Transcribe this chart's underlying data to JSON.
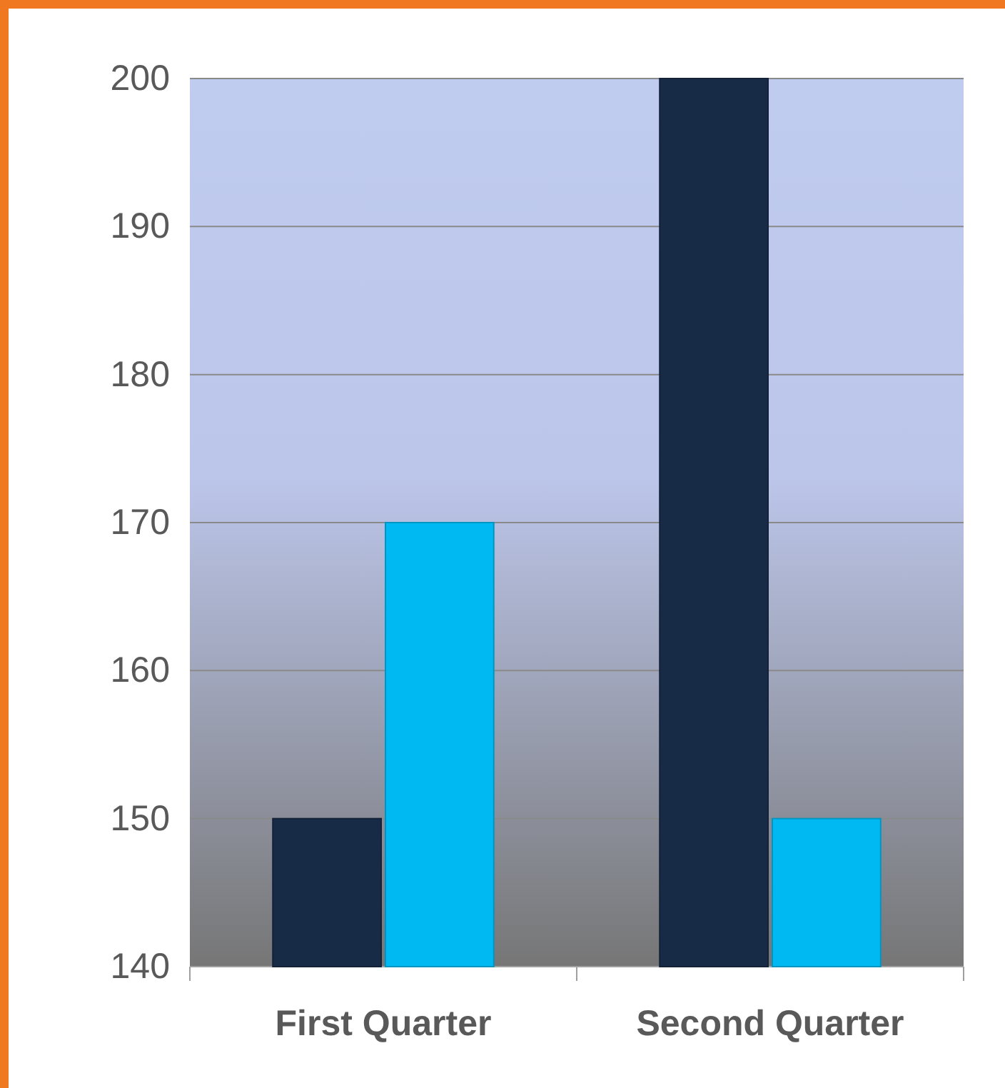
{
  "chart_data": {
    "type": "bar",
    "categories": [
      "First Quarter",
      "Second Quarter"
    ],
    "series": [
      {
        "color": "#172a46",
        "values": [
          150,
          200
        ]
      },
      {
        "color": "#00b9f2",
        "values": [
          170,
          150
        ]
      }
    ],
    "ylim": [
      140,
      200
    ],
    "yticks": [
      140,
      150,
      160,
      170,
      180,
      190,
      200
    ],
    "grid": "y"
  }
}
